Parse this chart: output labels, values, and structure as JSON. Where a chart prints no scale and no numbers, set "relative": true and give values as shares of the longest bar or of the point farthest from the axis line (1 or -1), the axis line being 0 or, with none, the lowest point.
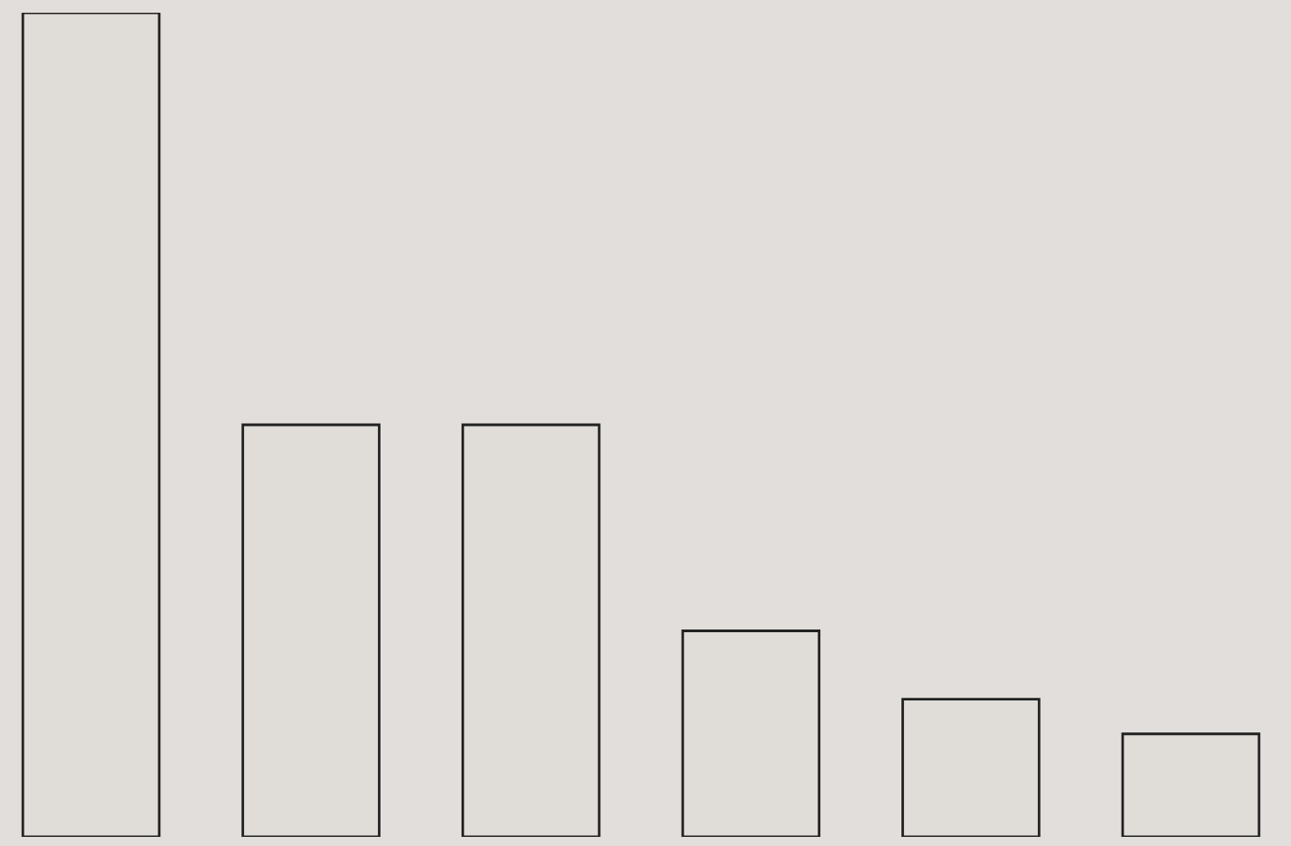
{
  "chart_data": {
    "type": "bar",
    "relative": true,
    "categories": [
      null,
      null,
      null,
      null,
      null,
      null
    ],
    "values": [
      1,
      0.5,
      0.5,
      0.25,
      0.167,
      0.125
    ],
    "color": "#e0ddd9"
  }
}
